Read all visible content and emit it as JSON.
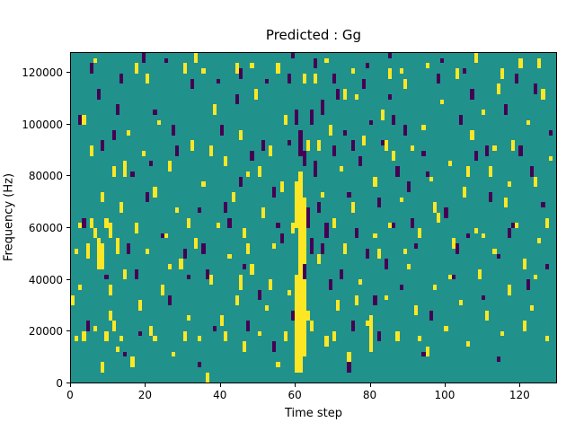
{
  "chart_data": {
    "type": "heatmap",
    "title": "Predicted : Gg",
    "xlabel": "Time step",
    "ylabel": "Frequency (Hz)",
    "xlim": [
      0,
      130
    ],
    "ylim": [
      0,
      128000
    ],
    "x_ticks": [
      0,
      20,
      40,
      60,
      80,
      100,
      120
    ],
    "y_ticks": [
      0,
      20000,
      40000,
      60000,
      80000,
      100000,
      120000
    ],
    "grid": false,
    "legend": "none",
    "colormap": "viridis",
    "colors": {
      "background": "#21918c",
      "high": "#fde725",
      "low": "#440154"
    },
    "n_time_steps": 130,
    "n_freq_bins": 64,
    "freq_bin_hz": 2000,
    "run_format": "[time_step, freq_bin_start, freq_bin_end]",
    "cells_high": [
      [
        0,
        15,
        16
      ],
      [
        1,
        8,
        8
      ],
      [
        1,
        25,
        25
      ],
      [
        2,
        18,
        18
      ],
      [
        2,
        30,
        30
      ],
      [
        3,
        8,
        9
      ],
      [
        3,
        50,
        51
      ],
      [
        4,
        24,
        26
      ],
      [
        5,
        30,
        31
      ],
      [
        5,
        44,
        45
      ],
      [
        6,
        10,
        10
      ],
      [
        6,
        28,
        29
      ],
      [
        6,
        62,
        62
      ],
      [
        7,
        22,
        27
      ],
      [
        8,
        2,
        3
      ],
      [
        8,
        22,
        26
      ],
      [
        8,
        35,
        36
      ],
      [
        9,
        8,
        9
      ],
      [
        9,
        30,
        31
      ],
      [
        10,
        12,
        13
      ],
      [
        10,
        17,
        18
      ],
      [
        10,
        28,
        30
      ],
      [
        11,
        10,
        11
      ],
      [
        11,
        40,
        41
      ],
      [
        12,
        6,
        6
      ],
      [
        12,
        25,
        27
      ],
      [
        13,
        8,
        8
      ],
      [
        13,
        33,
        34
      ],
      [
        14,
        20,
        21
      ],
      [
        14,
        40,
        42
      ],
      [
        15,
        48,
        48
      ],
      [
        16,
        3,
        4
      ],
      [
        17,
        29,
        30
      ],
      [
        17,
        60,
        61
      ],
      [
        18,
        14,
        15
      ],
      [
        19,
        44,
        44
      ],
      [
        20,
        25,
        25
      ],
      [
        20,
        58,
        59
      ],
      [
        21,
        9,
        10
      ],
      [
        22,
        8,
        8
      ],
      [
        22,
        36,
        37
      ],
      [
        23,
        50,
        50
      ],
      [
        24,
        17,
        18
      ],
      [
        25,
        28,
        28
      ],
      [
        26,
        22,
        22
      ],
      [
        26,
        41,
        42
      ],
      [
        27,
        5,
        5
      ],
      [
        28,
        33,
        33
      ],
      [
        29,
        22,
        23
      ],
      [
        30,
        8,
        9
      ],
      [
        30,
        60,
        61
      ],
      [
        31,
        12,
        12
      ],
      [
        31,
        30,
        31
      ],
      [
        32,
        45,
        46
      ],
      [
        33,
        26,
        27
      ],
      [
        33,
        62,
        63
      ],
      [
        34,
        8,
        8
      ],
      [
        35,
        38,
        38
      ],
      [
        35,
        60,
        60
      ],
      [
        36,
        0,
        1
      ],
      [
        37,
        19,
        20
      ],
      [
        37,
        44,
        45
      ],
      [
        38,
        52,
        53
      ],
      [
        39,
        30,
        30
      ],
      [
        40,
        11,
        12
      ],
      [
        41,
        8,
        9
      ],
      [
        41,
        42,
        43
      ],
      [
        42,
        24,
        24
      ],
      [
        43,
        35,
        36
      ],
      [
        44,
        15,
        16
      ],
      [
        44,
        60,
        61
      ],
      [
        45,
        18,
        20
      ],
      [
        45,
        47,
        48
      ],
      [
        46,
        6,
        7
      ],
      [
        46,
        28,
        29
      ],
      [
        47,
        25,
        26
      ],
      [
        47,
        40,
        40
      ],
      [
        48,
        21,
        22
      ],
      [
        48,
        61,
        61
      ],
      [
        49,
        55,
        56
      ],
      [
        50,
        9,
        9
      ],
      [
        50,
        40,
        41
      ],
      [
        51,
        32,
        33
      ],
      [
        52,
        14,
        14
      ],
      [
        53,
        18,
        19
      ],
      [
        53,
        44,
        45
      ],
      [
        54,
        26,
        26
      ],
      [
        55,
        3,
        3
      ],
      [
        55,
        60,
        61
      ],
      [
        56,
        37,
        38
      ],
      [
        57,
        8,
        9
      ],
      [
        57,
        50,
        51
      ],
      [
        58,
        17,
        17
      ],
      [
        59,
        29,
        30
      ],
      [
        60,
        2,
        20
      ],
      [
        60,
        30,
        38
      ],
      [
        61,
        2,
        40
      ],
      [
        62,
        5,
        35
      ],
      [
        62,
        58,
        59
      ],
      [
        63,
        12,
        13
      ],
      [
        63,
        45,
        46
      ],
      [
        64,
        10,
        11
      ],
      [
        65,
        58,
        59
      ],
      [
        66,
        23,
        24
      ],
      [
        66,
        45,
        46
      ],
      [
        67,
        36,
        36
      ],
      [
        68,
        7,
        8
      ],
      [
        68,
        62,
        62
      ],
      [
        69,
        48,
        49
      ],
      [
        70,
        8,
        9
      ],
      [
        70,
        30,
        31
      ],
      [
        71,
        14,
        15
      ],
      [
        72,
        41,
        41
      ],
      [
        73,
        25,
        26
      ],
      [
        73,
        55,
        56
      ],
      [
        74,
        4,
        5
      ],
      [
        75,
        33,
        34
      ],
      [
        75,
        60,
        60
      ],
      [
        76,
        15,
        16
      ],
      [
        76,
        55,
        55
      ],
      [
        77,
        19,
        19
      ],
      [
        78,
        46,
        47
      ],
      [
        79,
        11,
        11
      ],
      [
        80,
        6,
        12
      ],
      [
        81,
        28,
        28
      ],
      [
        81,
        38,
        39
      ],
      [
        82,
        24,
        25
      ],
      [
        83,
        51,
        52
      ],
      [
        84,
        16,
        16
      ],
      [
        84,
        45,
        46
      ],
      [
        85,
        30,
        30
      ],
      [
        85,
        59,
        60
      ],
      [
        86,
        43,
        44
      ],
      [
        87,
        8,
        9
      ],
      [
        88,
        35,
        35
      ],
      [
        88,
        60,
        60
      ],
      [
        89,
        25,
        25
      ],
      [
        89,
        57,
        58
      ],
      [
        90,
        22,
        22
      ],
      [
        91,
        45,
        45
      ],
      [
        92,
        13,
        14
      ],
      [
        93,
        8,
        8
      ],
      [
        93,
        28,
        29
      ],
      [
        94,
        49,
        49
      ],
      [
        95,
        5,
        6
      ],
      [
        95,
        61,
        61
      ],
      [
        96,
        39,
        39
      ],
      [
        97,
        18,
        18
      ],
      [
        97,
        33,
        34
      ],
      [
        98,
        31,
        32
      ],
      [
        99,
        54,
        54
      ],
      [
        100,
        10,
        10
      ],
      [
        101,
        20,
        20
      ],
      [
        101,
        42,
        42
      ],
      [
        102,
        26,
        27
      ],
      [
        103,
        59,
        60
      ],
      [
        104,
        15,
        15
      ],
      [
        105,
        36,
        37
      ],
      [
        106,
        7,
        7
      ],
      [
        106,
        40,
        41
      ],
      [
        107,
        47,
        48
      ],
      [
        108,
        29,
        29
      ],
      [
        108,
        62,
        63
      ],
      [
        109,
        20,
        21
      ],
      [
        110,
        28,
        28
      ],
      [
        110,
        52,
        52
      ],
      [
        111,
        12,
        13
      ],
      [
        112,
        40,
        41
      ],
      [
        113,
        25,
        25
      ],
      [
        113,
        45,
        45
      ],
      [
        114,
        56,
        57
      ],
      [
        115,
        9,
        9
      ],
      [
        115,
        59,
        60
      ],
      [
        116,
        34,
        35
      ],
      [
        117,
        17,
        18
      ],
      [
        117,
        38,
        38
      ],
      [
        118,
        45,
        46
      ],
      [
        119,
        30,
        30
      ],
      [
        120,
        61,
        62
      ],
      [
        121,
        10,
        11
      ],
      [
        121,
        22,
        23
      ],
      [
        122,
        50,
        50
      ],
      [
        123,
        14,
        14
      ],
      [
        124,
        20,
        20
      ],
      [
        124,
        38,
        39
      ],
      [
        125,
        27,
        27
      ],
      [
        125,
        61,
        62
      ],
      [
        126,
        55,
        56
      ],
      [
        127,
        8,
        8
      ],
      [
        127,
        30,
        31
      ],
      [
        128,
        43,
        43
      ]
    ],
    "cells_low": [
      [
        2,
        50,
        51
      ],
      [
        3,
        30,
        31
      ],
      [
        4,
        10,
        11
      ],
      [
        5,
        60,
        61
      ],
      [
        7,
        55,
        56
      ],
      [
        8,
        45,
        46
      ],
      [
        9,
        20,
        20
      ],
      [
        11,
        47,
        48
      ],
      [
        12,
        52,
        53
      ],
      [
        13,
        58,
        59
      ],
      [
        14,
        5,
        5
      ],
      [
        15,
        25,
        26
      ],
      [
        16,
        40,
        40
      ],
      [
        17,
        20,
        21
      ],
      [
        18,
        9,
        9
      ],
      [
        19,
        62,
        63
      ],
      [
        20,
        35,
        36
      ],
      [
        21,
        42,
        42
      ],
      [
        22,
        52,
        52
      ],
      [
        24,
        28,
        28
      ],
      [
        25,
        62,
        62
      ],
      [
        26,
        15,
        16
      ],
      [
        27,
        48,
        49
      ],
      [
        28,
        44,
        45
      ],
      [
        30,
        24,
        25
      ],
      [
        31,
        20,
        20
      ],
      [
        32,
        57,
        58
      ],
      [
        34,
        3,
        3
      ],
      [
        34,
        33,
        33
      ],
      [
        35,
        25,
        26
      ],
      [
        36,
        20,
        21
      ],
      [
        38,
        10,
        10
      ],
      [
        39,
        58,
        58
      ],
      [
        40,
        48,
        49
      ],
      [
        41,
        33,
        34
      ],
      [
        42,
        30,
        31
      ],
      [
        44,
        54,
        55
      ],
      [
        45,
        38,
        39
      ],
      [
        45,
        59,
        60
      ],
      [
        46,
        22,
        22
      ],
      [
        47,
        10,
        11
      ],
      [
        48,
        43,
        44
      ],
      [
        50,
        16,
        17
      ],
      [
        51,
        45,
        46
      ],
      [
        52,
        58,
        58
      ],
      [
        54,
        6,
        7
      ],
      [
        54,
        36,
        37
      ],
      [
        55,
        30,
        30
      ],
      [
        56,
        27,
        28
      ],
      [
        58,
        46,
        46
      ],
      [
        58,
        58,
        59
      ],
      [
        59,
        12,
        13
      ],
      [
        59,
        63,
        63
      ],
      [
        60,
        50,
        52
      ],
      [
        61,
        44,
        48
      ],
      [
        62,
        20,
        22
      ],
      [
        62,
        42,
        44
      ],
      [
        63,
        30,
        33
      ],
      [
        64,
        25,
        27
      ],
      [
        64,
        50,
        52
      ],
      [
        65,
        40,
        42
      ],
      [
        65,
        61,
        62
      ],
      [
        66,
        33,
        34
      ],
      [
        67,
        25,
        26
      ],
      [
        67,
        52,
        54
      ],
      [
        68,
        28,
        30
      ],
      [
        69,
        18,
        19
      ],
      [
        70,
        44,
        45
      ],
      [
        70,
        58,
        59
      ],
      [
        71,
        55,
        56
      ],
      [
        72,
        20,
        21
      ],
      [
        73,
        48,
        48
      ],
      [
        74,
        2,
        3
      ],
      [
        74,
        36,
        36
      ],
      [
        75,
        10,
        11
      ],
      [
        75,
        45,
        46
      ],
      [
        76,
        28,
        29
      ],
      [
        77,
        42,
        43
      ],
      [
        78,
        57,
        58
      ],
      [
        79,
        24,
        25
      ],
      [
        79,
        61,
        61
      ],
      [
        80,
        50,
        50
      ],
      [
        81,
        15,
        16
      ],
      [
        82,
        8,
        9
      ],
      [
        82,
        34,
        35
      ],
      [
        83,
        46,
        46
      ],
      [
        84,
        22,
        23
      ],
      [
        85,
        55,
        55
      ],
      [
        85,
        63,
        63
      ],
      [
        86,
        30,
        30
      ],
      [
        86,
        50,
        51
      ],
      [
        87,
        40,
        41
      ],
      [
        88,
        18,
        18
      ],
      [
        89,
        48,
        49
      ],
      [
        90,
        37,
        38
      ],
      [
        91,
        30,
        31
      ],
      [
        92,
        26,
        26
      ],
      [
        94,
        5,
        5
      ],
      [
        94,
        44,
        44
      ],
      [
        95,
        40,
        40
      ],
      [
        96,
        12,
        13
      ],
      [
        98,
        58,
        59
      ],
      [
        99,
        62,
        62
      ],
      [
        100,
        32,
        33
      ],
      [
        102,
        20,
        20
      ],
      [
        103,
        25,
        26
      ],
      [
        104,
        50,
        51
      ],
      [
        105,
        60,
        60
      ],
      [
        106,
        28,
        28
      ],
      [
        107,
        55,
        56
      ],
      [
        108,
        43,
        44
      ],
      [
        110,
        16,
        16
      ],
      [
        111,
        44,
        45
      ],
      [
        112,
        35,
        36
      ],
      [
        114,
        4,
        4
      ],
      [
        114,
        24,
        24
      ],
      [
        116,
        52,
        53
      ],
      [
        117,
        28,
        29
      ],
      [
        118,
        30,
        30
      ],
      [
        119,
        58,
        59
      ],
      [
        120,
        44,
        45
      ],
      [
        122,
        18,
        19
      ],
      [
        123,
        40,
        41
      ],
      [
        124,
        56,
        57
      ],
      [
        126,
        34,
        34
      ],
      [
        127,
        22,
        22
      ],
      [
        128,
        48,
        48
      ]
    ]
  }
}
